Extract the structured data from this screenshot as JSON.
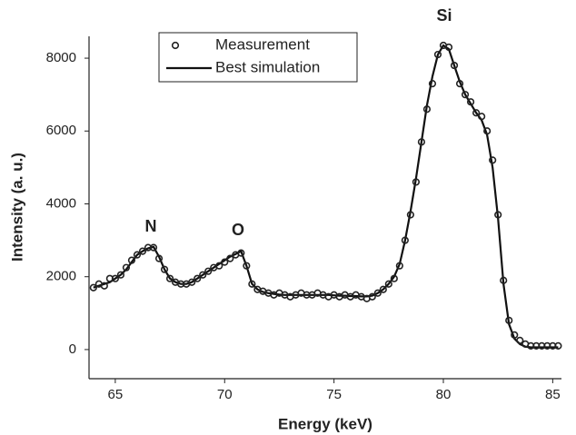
{
  "chart_data": {
    "type": "line",
    "x_label": "Energy (keV)",
    "y_label": "Intensity (a. u.)",
    "annotations": [
      "N",
      "O",
      "Si"
    ],
    "xlim": [
      63.8,
      85.4
    ],
    "ylim": [
      -800,
      8600
    ],
    "xticks": [
      65,
      70,
      75,
      80,
      85
    ],
    "yticks": [
      0,
      2000,
      4000,
      6000,
      8000
    ],
    "grid": false,
    "legend": "top-center",
    "x": [
      64,
      64.25,
      64.5,
      64.75,
      65,
      65.25,
      65.5,
      65.75,
      66,
      66.25,
      66.5,
      66.75,
      67,
      67.25,
      67.5,
      67.75,
      68,
      68.25,
      68.5,
      68.75,
      69,
      69.25,
      69.5,
      69.75,
      70,
      70.25,
      70.5,
      70.75,
      71,
      71.25,
      71.5,
      71.75,
      72,
      72.25,
      72.5,
      72.75,
      73,
      73.25,
      73.5,
      73.75,
      74,
      74.25,
      74.5,
      74.75,
      75,
      75.25,
      75.5,
      75.75,
      76,
      76.25,
      76.5,
      76.75,
      77,
      77.25,
      77.5,
      77.75,
      78,
      78.25,
      78.5,
      78.75,
      79,
      79.25,
      79.5,
      79.75,
      80,
      80.25,
      80.5,
      80.75,
      81,
      81.25,
      81.5,
      81.75,
      82,
      82.25,
      82.5,
      82.75,
      83,
      83.25,
      83.5,
      83.75,
      84,
      84.25,
      84.5,
      84.75,
      85,
      85.25
    ],
    "series": [
      {
        "name": "Measurement",
        "color": "#222222",
        "style": "circle-open",
        "values": [
          1700,
          1800,
          1750,
          1950,
          1950,
          2050,
          2250,
          2450,
          2600,
          2700,
          2800,
          2800,
          2500,
          2200,
          1950,
          1850,
          1800,
          1800,
          1850,
          1950,
          2050,
          2150,
          2250,
          2300,
          2400,
          2500,
          2600,
          2650,
          2300,
          1800,
          1650,
          1600,
          1550,
          1500,
          1550,
          1500,
          1450,
          1500,
          1550,
          1500,
          1500,
          1550,
          1500,
          1450,
          1500,
          1450,
          1500,
          1450,
          1500,
          1450,
          1400,
          1450,
          1550,
          1650,
          1800,
          1950,
          2300,
          3000,
          3700,
          4600,
          5700,
          6600,
          7300,
          8100,
          8350,
          8300,
          7800,
          7300,
          7000,
          6800,
          6500,
          6400,
          6000,
          5200,
          3700,
          1900,
          800,
          400,
          250,
          150,
          100,
          100,
          100,
          100,
          100,
          100
        ]
      },
      {
        "name": "Best simulation",
        "color": "#111111",
        "style": "line",
        "values": [
          1700,
          1750,
          1800,
          1850,
          1950,
          2050,
          2200,
          2400,
          2600,
          2700,
          2780,
          2820,
          2550,
          2200,
          1950,
          1850,
          1800,
          1800,
          1850,
          1950,
          2050,
          2150,
          2250,
          2350,
          2450,
          2550,
          2620,
          2700,
          2300,
          1800,
          1650,
          1580,
          1550,
          1530,
          1510,
          1500,
          1500,
          1500,
          1500,
          1500,
          1500,
          1500,
          1500,
          1500,
          1490,
          1480,
          1480,
          1470,
          1470,
          1460,
          1460,
          1480,
          1550,
          1650,
          1800,
          2000,
          2350,
          3000,
          3800,
          4700,
          5700,
          6700,
          7500,
          8100,
          8350,
          8250,
          7800,
          7350,
          7000,
          6750,
          6500,
          6300,
          5900,
          5000,
          3600,
          1800,
          700,
          300,
          150,
          80,
          60,
          60,
          60,
          60,
          60,
          60
        ]
      }
    ]
  }
}
